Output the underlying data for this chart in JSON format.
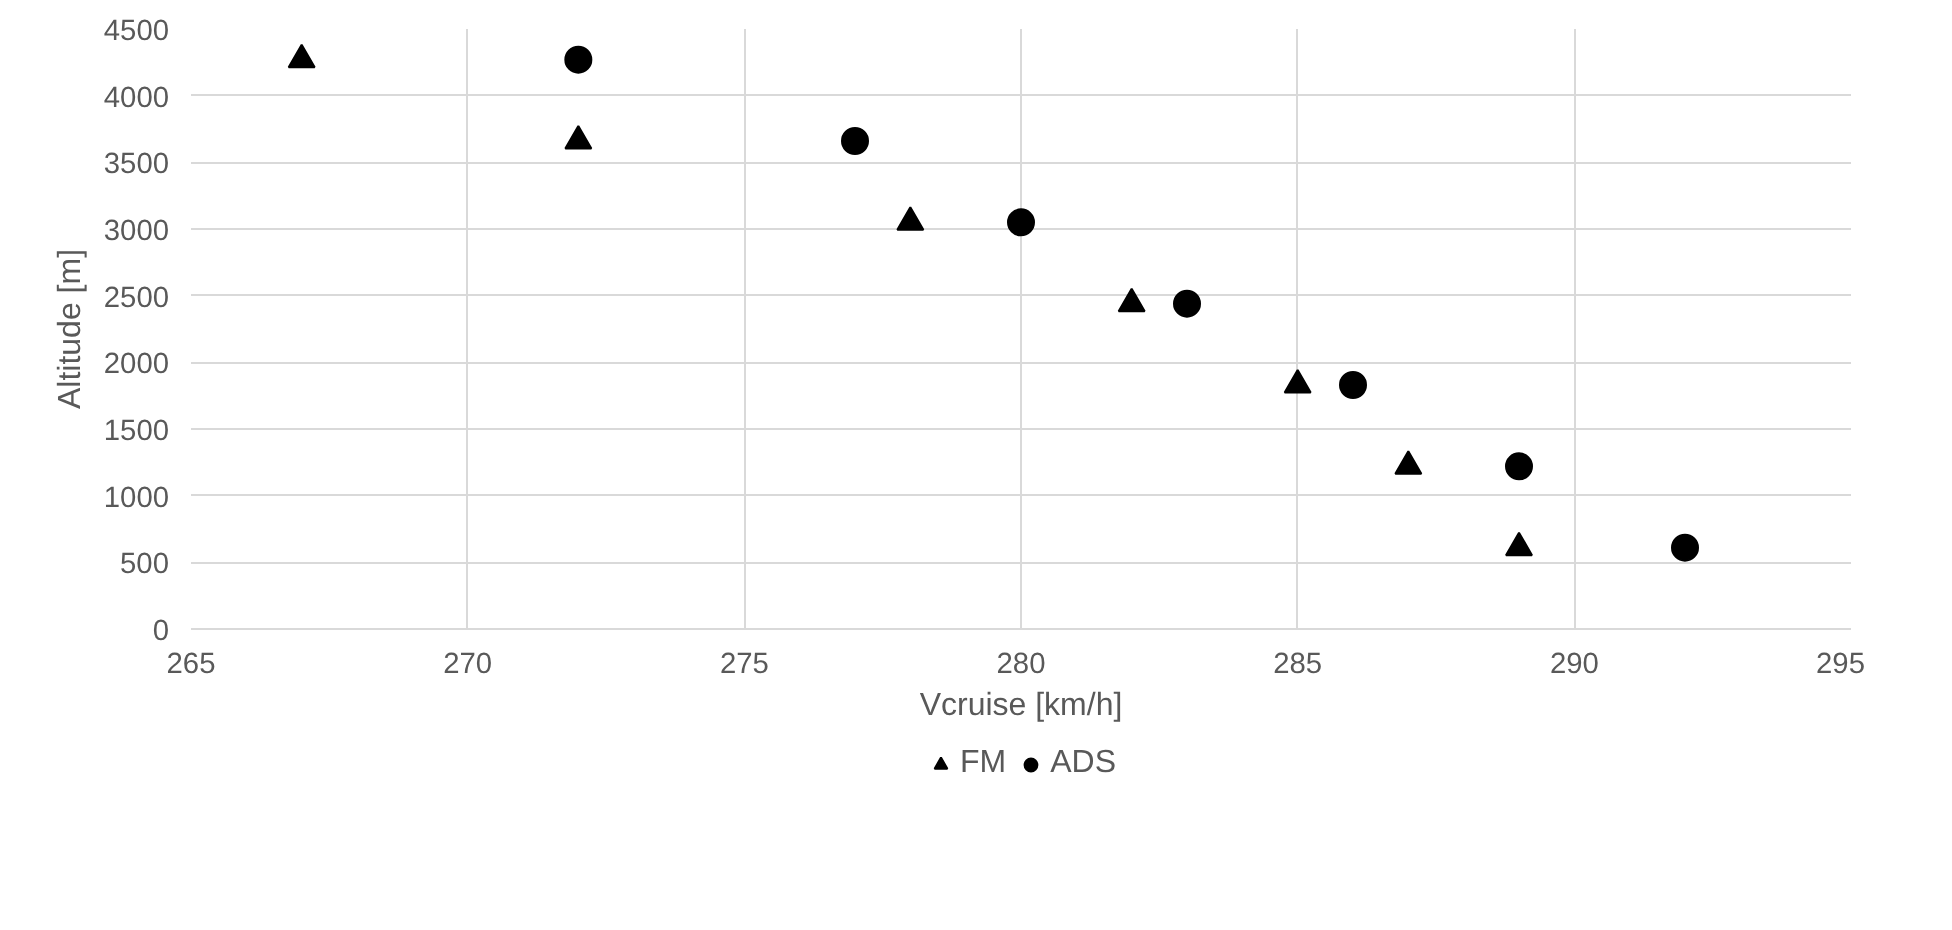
{
  "chart_data": {
    "type": "scatter",
    "xlabel": "Vcruise [km/h]",
    "ylabel": "Altitude [m]",
    "xlim": [
      265,
      295
    ],
    "xticks": [
      265,
      270,
      275,
      280,
      285,
      290,
      295
    ],
    "ylim": [
      0,
      4500
    ],
    "yticks": [
      0,
      500,
      1000,
      1500,
      2000,
      2500,
      3000,
      3500,
      4000,
      4500
    ],
    "grid": true,
    "legend": "bottom",
    "series": [
      {
        "name": "FM",
        "color": "#000000",
        "marker": "triangle",
        "x": [
          267,
          272,
          278,
          282,
          285,
          287,
          289
        ],
        "values": [
          4270,
          3660,
          3050,
          2440,
          1830,
          1220,
          610
        ]
      },
      {
        "name": "ADS",
        "color": "#000000",
        "marker": "circle",
        "x": [
          272,
          277,
          280,
          283,
          286,
          289,
          292
        ],
        "values": [
          4270,
          3660,
          3050,
          2440,
          1830,
          1220,
          610
        ]
      }
    ]
  }
}
